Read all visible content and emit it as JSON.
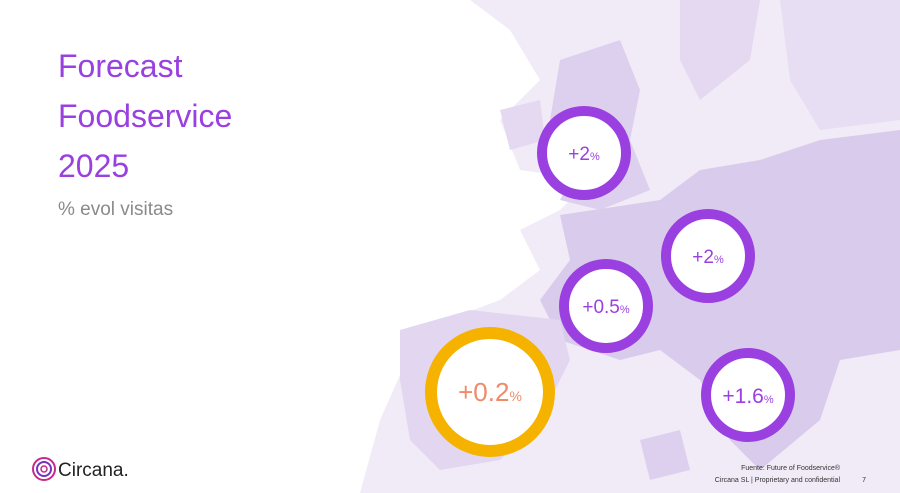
{
  "title": [
    "Forecast",
    "Foodservice",
    "2025"
  ],
  "subtitle": "% evol visitas",
  "markers": [
    {
      "value": "+2",
      "unit": "%"
    },
    {
      "value": "+2",
      "unit": "%"
    },
    {
      "value": "+0.5",
      "unit": "%"
    },
    {
      "value": "+0.2",
      "unit": "%"
    },
    {
      "value": "+1.6",
      "unit": "%"
    }
  ],
  "logo": "Circana.",
  "source": "Fuente: Future of Foodservice®",
  "footer": "Circana SL  |  Proprietary and confidential",
  "page": "7"
}
